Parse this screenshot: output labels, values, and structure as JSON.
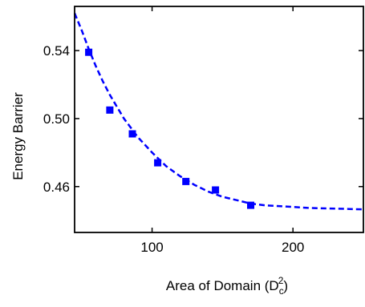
{
  "chart_data": {
    "type": "scatter",
    "title": "",
    "xlabel": "Area of Domain (D",
    "xlabel_sub": "c",
    "xlabel_sup": "2",
    "xlabel_close": ")",
    "ylabel": "Energy Barrier",
    "xlim": [
      45,
      250
    ],
    "ylim": [
      0.433,
      0.566
    ],
    "xticks": [
      100,
      200
    ],
    "xtick_labels": [
      "100",
      "200"
    ],
    "yticks": [
      0.46,
      0.5,
      0.54
    ],
    "ytick_labels": [
      "0.46",
      "0.50",
      "0.54"
    ],
    "grid": false,
    "legend": "none",
    "series": [
      {
        "marker": "square",
        "color": "#0000ff",
        "x": [
          55,
          70,
          86,
          104,
          124,
          145,
          170
        ],
        "y": [
          0.539,
          0.505,
          0.491,
          0.474,
          0.463,
          0.458,
          0.449
        ]
      }
    ],
    "fit_curve": {
      "style": "dashed",
      "color": "#0000ff",
      "x": [
        45,
        50,
        55,
        60,
        65,
        70,
        80,
        90,
        100,
        110,
        120,
        130,
        140,
        150,
        160,
        170,
        180,
        190,
        200,
        210,
        220,
        230,
        240,
        250
      ],
      "y": [
        0.562,
        0.552,
        0.541,
        0.531,
        0.522,
        0.514,
        0.5,
        0.489,
        0.48,
        0.472,
        0.466,
        0.461,
        0.457,
        0.454,
        0.452,
        0.45,
        0.449,
        0.4485,
        0.448,
        0.4475,
        0.4472,
        0.447,
        0.4468,
        0.4466
      ]
    }
  }
}
